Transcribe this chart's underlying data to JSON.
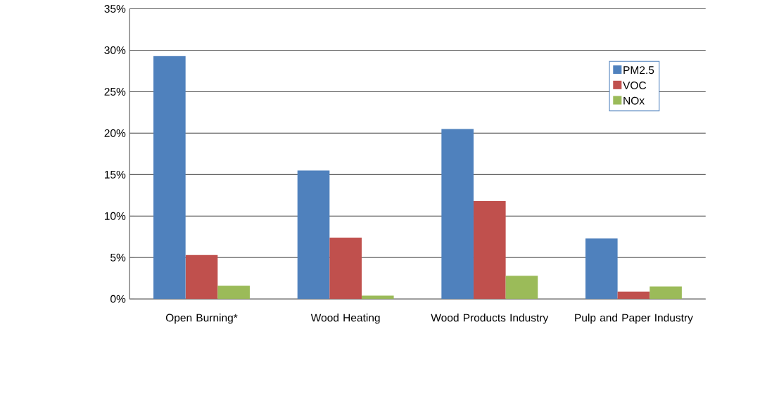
{
  "chart_data": {
    "type": "bar",
    "categories": [
      "Open Burning*",
      "Wood Heating",
      "Wood Products Industry",
      "Pulp and Paper Industry"
    ],
    "series": [
      {
        "name": "PM2.5",
        "color": "#4f81bd",
        "values": [
          29.3,
          15.5,
          20.5,
          7.3
        ]
      },
      {
        "name": "VOC",
        "color": "#c0504d",
        "values": [
          5.3,
          7.4,
          11.8,
          0.9
        ]
      },
      {
        "name": "NOx",
        "color": "#9bbb59",
        "values": [
          1.6,
          0.4,
          2.8,
          1.5
        ]
      }
    ],
    "ylim": [
      0,
      35
    ],
    "yticks": [
      {
        "value": 0,
        "label": "0%"
      },
      {
        "value": 5,
        "label": "5%"
      },
      {
        "value": 10,
        "label": "10%"
      },
      {
        "value": 15,
        "label": "15%"
      },
      {
        "value": 20,
        "label": "20%"
      },
      {
        "value": 25,
        "label": "25%"
      },
      {
        "value": 30,
        "label": "30%"
      },
      {
        "value": 35,
        "label": "35%"
      }
    ],
    "grid": "y",
    "legend": "top right"
  }
}
